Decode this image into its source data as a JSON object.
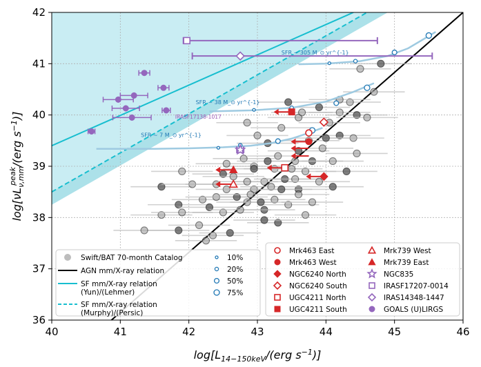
{
  "chart_data": {
    "type": "scatter",
    "xlabel": "log[L_{14-150keV}/(erg s^{-1})]",
    "ylabel": "log[νL^{peak}_{ν,mm}/(erg s^{-1})]",
    "xlim": [
      40,
      46
    ],
    "ylim": [
      36,
      42
    ],
    "xticks": [
      40,
      41,
      42,
      43,
      44,
      45,
      46
    ],
    "yticks": [
      36,
      37,
      38,
      39,
      40,
      41,
      42
    ],
    "grid": true,
    "colors": {
      "swift": "#9a9a9a",
      "agn": "#000000",
      "sf": "#17becf",
      "red": "#d62728",
      "purple": "#9467bd",
      "blue": "#1f77b4",
      "track": "#9ecae1",
      "band": "#c6ecf2"
    },
    "relations": {
      "agn": {
        "x": [
          40.7,
          46.0
        ],
        "y": [
          35.8,
          42.0
        ]
      },
      "sf_lehmer": {
        "x": [
          40.0,
          44.4
        ],
        "y": [
          39.4,
          42.0
        ]
      },
      "sf_persic": {
        "x": [
          40.0,
          44.6
        ],
        "y": [
          38.5,
          42.0
        ]
      }
    },
    "sfr_tracks": [
      {
        "label": "SFR ~ 7 M_⊙ yr^{-1}",
        "label_xy": [
          41.3,
          39.57
        ],
        "x": [
          40.65,
          41.5,
          42.0,
          42.5,
          42.9,
          43.2,
          43.5,
          43.75,
          43.95
        ],
        "y": [
          39.34,
          39.34,
          39.35,
          39.37,
          39.4,
          39.45,
          39.54,
          39.65,
          39.75
        ],
        "rings": [
          {
            "x": 42.43,
            "y": 39.36,
            "frac": "10%"
          },
          {
            "x": 42.75,
            "y": 39.41,
            "frac": "20%"
          },
          {
            "x": 43.3,
            "y": 39.49,
            "frac": "50%"
          },
          {
            "x": 43.8,
            "y": 39.7,
            "frac": "75%"
          }
        ]
      },
      {
        "label": "SFR ~ 38 M_⊙ yr^{-1}",
        "label_xy": [
          42.1,
          40.21
        ],
        "x": [
          42.3,
          42.9,
          43.5,
          44.0,
          44.4,
          44.7
        ],
        "y": [
          40.07,
          40.09,
          40.14,
          40.26,
          40.45,
          40.62
        ],
        "rings": [
          {
            "x": 42.95,
            "y": 40.1,
            "frac": "10%"
          },
          {
            "x": 43.5,
            "y": 40.14,
            "frac": "20%"
          },
          {
            "x": 44.15,
            "y": 40.23,
            "frac": "50%"
          },
          {
            "x": 44.6,
            "y": 40.53,
            "frac": "75%"
          }
        ]
      },
      {
        "label": "SFR ~ 305 M_⊙ yr^{-1}",
        "label_xy": [
          43.35,
          41.18
        ],
        "x": [
          43.6,
          44.0,
          44.5,
          44.9,
          45.2,
          45.45,
          45.6
        ],
        "y": [
          40.99,
          41.0,
          41.05,
          41.15,
          41.3,
          41.5,
          41.62
        ],
        "rings": [
          {
            "x": 44.05,
            "y": 41.01,
            "frac": "10%"
          },
          {
            "x": 44.43,
            "y": 41.05,
            "frac": "20%"
          },
          {
            "x": 45.0,
            "y": 41.22,
            "frac": "50%"
          },
          {
            "x": 45.5,
            "y": 41.55,
            "frac": "75%"
          }
        ]
      }
    ],
    "annotations": {
      "iras17138": {
        "text": "IRASF17138-1017",
        "xy": [
          41.8,
          39.93
        ]
      }
    },
    "swift_points": [
      [
        41.9,
        38.9
      ],
      [
        41.6,
        38.6
      ],
      [
        42.05,
        38.65
      ],
      [
        42.2,
        38.35
      ],
      [
        41.85,
        38.25
      ],
      [
        41.6,
        38.05
      ],
      [
        41.9,
        38.1
      ],
      [
        42.3,
        38.2
      ],
      [
        42.5,
        38.1
      ],
      [
        42.15,
        37.85
      ],
      [
        41.85,
        37.75
      ],
      [
        42.25,
        37.55
      ],
      [
        42.35,
        37.65
      ],
      [
        42.6,
        37.7
      ],
      [
        42.55,
        38.55
      ],
      [
        42.4,
        38.4
      ],
      [
        42.7,
        38.4
      ],
      [
        42.85,
        38.3
      ],
      [
        42.95,
        38.55
      ],
      [
        43.1,
        38.15
      ],
      [
        43.25,
        38.35
      ],
      [
        43.45,
        38.25
      ],
      [
        43.6,
        38.55
      ],
      [
        43.8,
        38.3
      ],
      [
        43.7,
        38.05
      ],
      [
        43.3,
        37.9
      ],
      [
        43.1,
        38.7
      ],
      [
        43.25,
        38.95
      ],
      [
        43.4,
        38.75
      ],
      [
        43.55,
        38.75
      ],
      [
        43.7,
        38.9
      ],
      [
        43.8,
        39.1
      ],
      [
        43.55,
        39.1
      ],
      [
        43.3,
        39.2
      ],
      [
        43.6,
        39.3
      ],
      [
        43.75,
        39.5
      ],
      [
        43.95,
        39.35
      ],
      [
        44.2,
        39.6
      ],
      [
        44.4,
        39.55
      ],
      [
        44.1,
        39.1
      ],
      [
        44.3,
        38.9
      ],
      [
        44.05,
        39.85
      ],
      [
        44.2,
        40.05
      ],
      [
        44.45,
        40.0
      ],
      [
        44.6,
        39.95
      ],
      [
        44.35,
        40.25
      ],
      [
        43.9,
        40.15
      ],
      [
        44.7,
        40.45
      ],
      [
        44.5,
        40.9
      ],
      [
        44.8,
        41.0
      ],
      [
        43.35,
        39.75
      ],
      [
        43.6,
        39.95
      ],
      [
        43.45,
        40.25
      ],
      [
        42.85,
        39.85
      ],
      [
        43.0,
        39.6
      ],
      [
        43.15,
        39.45
      ],
      [
        42.95,
        39.0
      ],
      [
        43.2,
        38.6
      ],
      [
        43.35,
        38.55
      ],
      [
        42.9,
        38.45
      ],
      [
        42.75,
        38.15
      ],
      [
        42.95,
        38.95
      ],
      [
        42.8,
        39.15
      ],
      [
        42.55,
        39.05
      ],
      [
        42.5,
        38.85
      ],
      [
        42.4,
        38.65
      ],
      [
        42.65,
        38.8
      ],
      [
        43.05,
        38.3
      ],
      [
        42.85,
        38.7
      ],
      [
        43.5,
        38.95
      ],
      [
        44.1,
        38.6
      ],
      [
        44.45,
        39.25
      ],
      [
        43.9,
        38.7
      ],
      [
        43.15,
        39.1
      ],
      [
        43.65,
        40.05
      ],
      [
        44.2,
        40.3
      ],
      [
        43.1,
        37.95
      ],
      [
        43.6,
        38.45
      ],
      [
        41.35,
        37.75
      ],
      [
        44.0,
        39.55
      ]
    ],
    "swift_xerr": 0.45,
    "purple_series": [
      {
        "x": 41.35,
        "y": 40.82,
        "xerr": 0.08,
        "yerr": 0.05
      },
      {
        "x": 41.2,
        "y": 40.38,
        "xerr": 0.2,
        "yerr": 0.06
      },
      {
        "x": 40.97,
        "y": 40.3,
        "xerr": 0.22,
        "yerr": 0.06
      },
      {
        "x": 41.08,
        "y": 40.13,
        "xerr": 0.2,
        "yerr": 0.06
      },
      {
        "x": 41.17,
        "y": 39.95,
        "xerr": 0.28,
        "yerr": 0.06
      },
      {
        "x": 41.63,
        "y": 40.53,
        "xerr": 0.08,
        "yerr": 0.05
      },
      {
        "x": 41.67,
        "y": 40.09,
        "xerr": 0.06,
        "yerr": 0.06
      },
      {
        "x": 40.58,
        "y": 39.68,
        "xerr": 0.05,
        "yerr": 0.06
      }
    ],
    "special_points": [
      {
        "name": "Mrk463 East",
        "x": 43.75,
        "y": 39.65,
        "marker": "circle-open",
        "color": "red"
      },
      {
        "name": "Mrk463 West",
        "x": 43.75,
        "y": 39.48,
        "marker": "circle",
        "color": "red"
      },
      {
        "name": "NGC6240 North",
        "x": 43.97,
        "y": 38.8,
        "marker": "diamond",
        "color": "red",
        "arrow": "left"
      },
      {
        "name": "NGC6240 South",
        "x": 43.97,
        "y": 39.86,
        "marker": "diamond-open",
        "color": "red"
      },
      {
        "name": "UGC4211 North",
        "x": 43.4,
        "y": 38.97,
        "marker": "square-open",
        "color": "red",
        "arrow": "left"
      },
      {
        "name": "UGC4211 South",
        "x": 43.5,
        "y": 40.06,
        "marker": "square",
        "color": "red",
        "arrow": "left"
      },
      {
        "name": "Mrk739 West",
        "x": 42.65,
        "y": 38.65,
        "marker": "triangle-open",
        "color": "red",
        "arrow": "left"
      },
      {
        "name": "Mrk739 East",
        "x": 42.65,
        "y": 38.93,
        "marker": "triangle",
        "color": "red",
        "arrow": "left"
      },
      {
        "name": "NGC835",
        "x": 42.75,
        "y": 39.32,
        "marker": "star-open",
        "color": "purple",
        "xerr": 0.05
      },
      {
        "name": "IRASF17207-0014",
        "x": 41.97,
        "y": 41.45,
        "marker": "square-open",
        "color": "purple",
        "xerr": [
          0.05,
          2.78
        ]
      },
      {
        "name": "IRAS14348-1447",
        "x": 42.75,
        "y": 41.15,
        "marker": "diamond-open",
        "color": "purple",
        "xerr": [
          0.7,
          2.8
        ]
      }
    ],
    "red_arrows": [
      [
        43.75,
        39.48
      ],
      [
        43.5,
        40.06
      ],
      [
        43.4,
        38.97
      ],
      [
        43.97,
        38.8
      ],
      [
        42.65,
        38.93
      ],
      [
        42.65,
        38.65
      ],
      [
        43.75,
        39.35
      ],
      [
        43.75,
        39.2
      ]
    ],
    "legend_left": [
      {
        "label": "Swift/BAT 70-month Catalog",
        "style": "grey-dot"
      },
      {
        "label": "AGN mm/X-ray relation",
        "style": "black-line"
      },
      {
        "label": "SF mm/X-ray relation",
        "label2": "(Yun)/(Lehmer)",
        "style": "cyan-line"
      },
      {
        "label": "SF mm/X-ray relation",
        "label2": "(Murphy)/(Persic)",
        "style": "cyan-dash"
      }
    ],
    "legend_rings": [
      "10%",
      "20%",
      "50%",
      "75%"
    ],
    "legend_right_col1": [
      {
        "label": "Mrk463 East",
        "marker": "circle-open"
      },
      {
        "label": "Mrk463 West",
        "marker": "circle"
      },
      {
        "label": "NGC6240 North",
        "marker": "diamond"
      },
      {
        "label": "NGC6240 South",
        "marker": "diamond-open"
      },
      {
        "label": "UGC4211 North",
        "marker": "square-open"
      },
      {
        "label": "UGC4211 South",
        "marker": "square"
      }
    ],
    "legend_right_col2": [
      {
        "label": "Mrk739 West",
        "marker": "triangle-open",
        "color": "red"
      },
      {
        "label": "Mrk739 East",
        "marker": "triangle",
        "color": "red"
      },
      {
        "label": "NGC835",
        "marker": "star-open",
        "color": "purple"
      },
      {
        "label": "IRASF17207-0014",
        "marker": "square-open",
        "color": "purple"
      },
      {
        "label": "IRAS14348-1447",
        "marker": "diamond-open",
        "color": "purple"
      },
      {
        "label": "GOALS (U)LIRGS",
        "marker": "circle",
        "color": "purple"
      }
    ]
  }
}
